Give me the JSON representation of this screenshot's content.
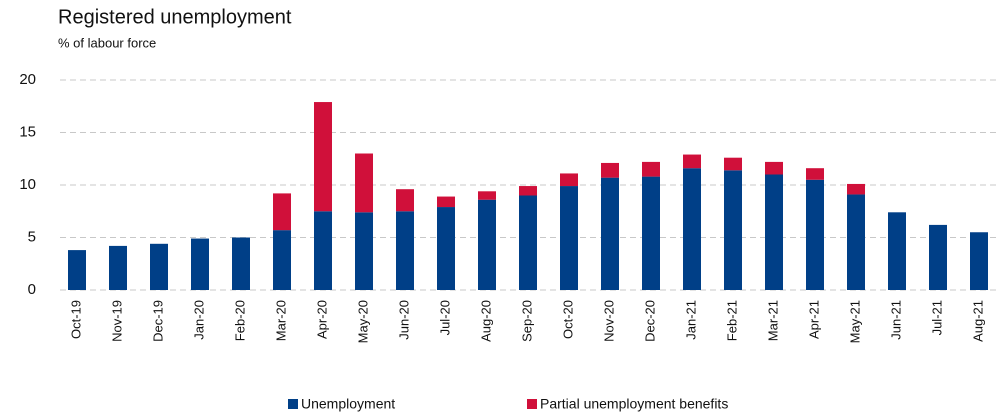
{
  "chart_data": {
    "type": "stacked_bar",
    "title": "Registered unemployment",
    "subtitle": "% of labour force",
    "categories": [
      "Oct-19",
      "Nov-19",
      "Dec-19",
      "Jan-20",
      "Feb-20",
      "Mar-20",
      "Apr-20",
      "May-20",
      "Jun-20",
      "Jul-20",
      "Aug-20",
      "Sep-20",
      "Oct-20",
      "Nov-20",
      "Dec-20",
      "Jan-21",
      "Feb-21",
      "Mar-21",
      "Apr-21",
      "May-21",
      "Jun-21",
      "Jul-21",
      "Aug-21"
    ],
    "series": [
      {
        "name": "Unemployment",
        "color": "#003f87",
        "values": [
          3.8,
          4.2,
          4.4,
          4.9,
          5.0,
          5.7,
          7.5,
          7.4,
          7.5,
          7.9,
          8.6,
          9.0,
          9.9,
          10.7,
          10.8,
          11.6,
          11.4,
          11.0,
          10.5,
          9.1,
          7.4,
          6.2,
          5.5
        ]
      },
      {
        "name": "Partial unemployment benefits",
        "color": "#d0103a",
        "values": [
          0,
          0,
          0,
          0,
          0,
          3.5,
          10.4,
          5.6,
          2.1,
          1.0,
          0.8,
          0.9,
          1.2,
          1.4,
          1.4,
          1.3,
          1.2,
          1.2,
          1.1,
          1.0,
          0,
          0,
          0
        ]
      }
    ],
    "ylim": [
      0,
      20
    ],
    "yticks": [
      0,
      5,
      10,
      15,
      20
    ],
    "grid": true
  }
}
